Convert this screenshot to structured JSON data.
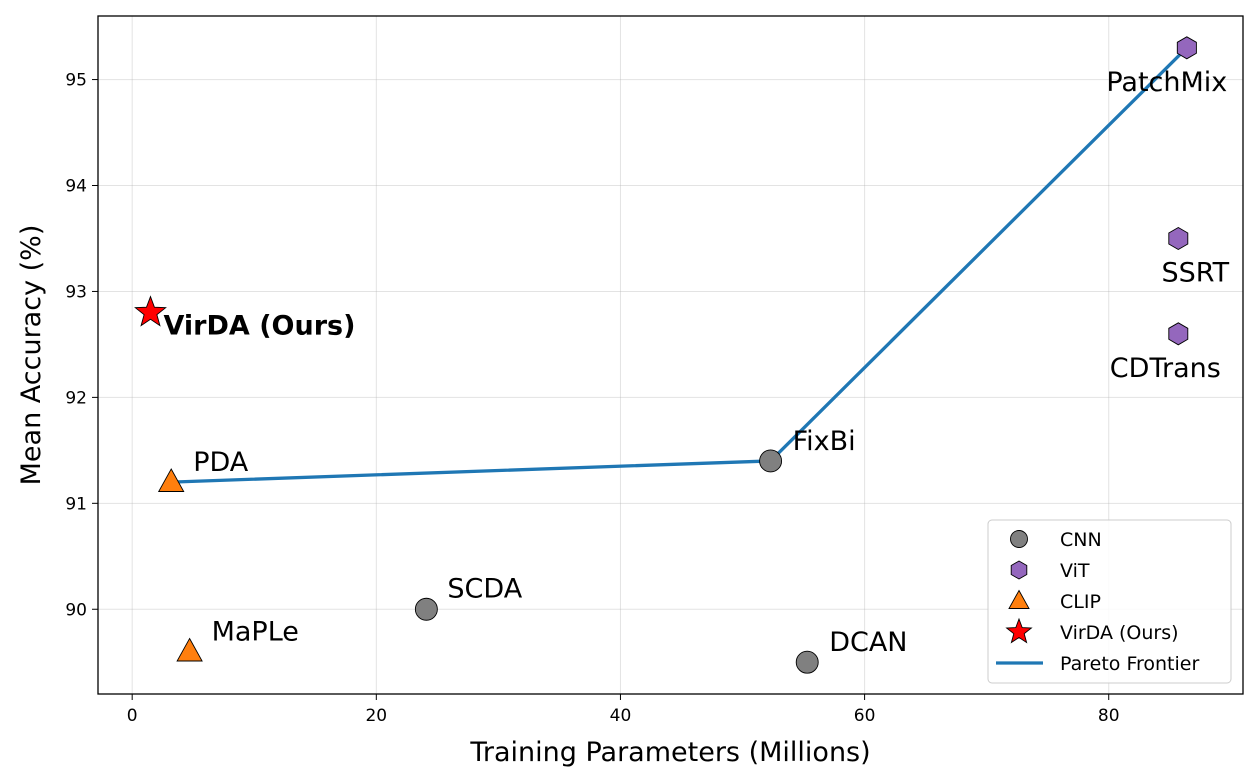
{
  "chart_data": {
    "type": "scatter",
    "title": "",
    "xlabel": "Training Parameters (Millions)",
    "ylabel": "Mean Accuracy (%)",
    "xlim": [
      -2.8,
      91
    ],
    "ylim": [
      89.2,
      95.6
    ],
    "xticks": [
      0,
      20,
      40,
      60,
      80
    ],
    "yticks": [
      90,
      91,
      92,
      93,
      94,
      95
    ],
    "grid": true,
    "legend_position": "lower-right",
    "series": [
      {
        "name": "CNN",
        "marker": "circle",
        "color": "#808080",
        "points": [
          {
            "x": 24.1,
            "y": 90.0,
            "label": "SCDA"
          },
          {
            "x": 52.3,
            "y": 91.4,
            "label": "FixBi"
          },
          {
            "x": 55.3,
            "y": 89.5,
            "label": "DCAN"
          }
        ]
      },
      {
        "name": "ViT",
        "marker": "hexagon",
        "color": "#9467bd",
        "points": [
          {
            "x": 86.4,
            "y": 95.3,
            "label": "PatchMix"
          },
          {
            "x": 85.7,
            "y": 93.5,
            "label": "SSRT"
          },
          {
            "x": 85.7,
            "y": 92.6,
            "label": "CDTrans"
          }
        ]
      },
      {
        "name": "CLIP",
        "marker": "triangle",
        "color": "#ff7f0e",
        "points": [
          {
            "x": 3.2,
            "y": 91.2,
            "label": "PDA"
          },
          {
            "x": 4.7,
            "y": 89.6,
            "label": "MaPLe"
          }
        ]
      },
      {
        "name": "VirDA (Ours)",
        "marker": "star",
        "color": "#ff0000",
        "points": [
          {
            "x": 1.5,
            "y": 92.8,
            "label": "VirDA (Ours)"
          }
        ]
      }
    ],
    "pareto_frontier": {
      "name": "Pareto Frontier",
      "color": "#1f77b4",
      "points": [
        {
          "x": 3.2,
          "y": 91.2
        },
        {
          "x": 52.3,
          "y": 91.4
        },
        {
          "x": 86.4,
          "y": 95.3
        }
      ]
    }
  }
}
